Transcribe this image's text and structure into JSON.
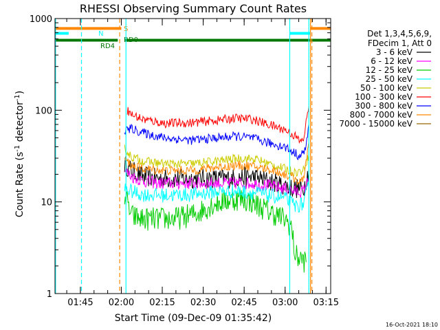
{
  "chart_data": {
    "type": "line",
    "title": "RHESSI Observing Summary Count Rates",
    "xlabel": "Start Time (09-Dec-09 01:35:42)",
    "ylabel_main": "Count Rate (s",
    "ylabel_sup1": "-1",
    "ylabel_mid": " detector",
    "ylabel_sup2": "-1",
    "ylabel_end": ")",
    "x_unit": "minutes after 01:35:42",
    "xlim": [
      0,
      101
    ],
    "yscale": "log",
    "ylim": [
      1,
      1000
    ],
    "x_ticks": [
      {
        "label": "01:45",
        "x": 9.3
      },
      {
        "label": "02:00",
        "x": 24.3
      },
      {
        "label": "02:15",
        "x": 39.3
      },
      {
        "label": "02:30",
        "x": 54.3
      },
      {
        "label": "02:45",
        "x": 69.3
      },
      {
        "label": "03:00",
        "x": 84.3
      },
      {
        "label": "03:15",
        "x": 99.3
      }
    ],
    "y_ticks": [
      {
        "label": "1",
        "y": 1
      },
      {
        "label": "10",
        "y": 10
      },
      {
        "label": "100",
        "y": 100
      },
      {
        "label": "1000",
        "y": 1000
      }
    ],
    "legend_header": [
      "Det 1,3,4,5,6,9,",
      "FDecim 1, Att 0"
    ],
    "series": [
      {
        "name": "3 - 6 keV",
        "color": "#000000",
        "noise": 0.11,
        "points": [
          [
            25.5,
            26
          ],
          [
            28,
            22
          ],
          [
            32,
            19
          ],
          [
            38,
            18
          ],
          [
            45,
            18
          ],
          [
            55,
            18
          ],
          [
            65,
            18
          ],
          [
            72,
            19
          ],
          [
            78,
            17
          ],
          [
            84,
            15
          ],
          [
            88,
            14
          ],
          [
            91,
            14
          ],
          [
            93,
            22
          ]
        ]
      },
      {
        "name": "6 - 12 keV",
        "color": "#ff00ff",
        "noise": 0.07,
        "points": [
          [
            25.5,
            22
          ],
          [
            28,
            19
          ],
          [
            32,
            17
          ],
          [
            38,
            16
          ],
          [
            45,
            16
          ],
          [
            55,
            16
          ],
          [
            65,
            16
          ],
          [
            72,
            16
          ],
          [
            78,
            15
          ],
          [
            84,
            14
          ],
          [
            88,
            13
          ],
          [
            91,
            13
          ],
          [
            93,
            18
          ]
        ]
      },
      {
        "name": "12 - 25 keV",
        "color": "#00cc00",
        "noise": 0.13,
        "points": [
          [
            25.5,
            12
          ],
          [
            28,
            7
          ],
          [
            32,
            6.5
          ],
          [
            38,
            6.5
          ],
          [
            45,
            6.6
          ],
          [
            52,
            7.5
          ],
          [
            58,
            9.5
          ],
          [
            64,
            10.5
          ],
          [
            68,
            10.8
          ],
          [
            72,
            10
          ],
          [
            78,
            8
          ],
          [
            84,
            6.5
          ],
          [
            86.5,
            5.5
          ],
          [
            88,
            2.6
          ],
          [
            92,
            2.2
          ]
        ]
      },
      {
        "name": "25 - 50 keV",
        "color": "#00ffff",
        "noise": 0.08,
        "points": [
          [
            25.5,
            14
          ],
          [
            28,
            13
          ],
          [
            32,
            12
          ],
          [
            40,
            11.8
          ],
          [
            50,
            12
          ],
          [
            60,
            13
          ],
          [
            68,
            13
          ],
          [
            74,
            12.5
          ],
          [
            80,
            11.5
          ],
          [
            84,
            11
          ],
          [
            88,
            9
          ],
          [
            91,
            9.5
          ],
          [
            93,
            15
          ]
        ]
      },
      {
        "name": "50 - 100 keV",
        "color": "#cccc00",
        "noise": 0.05,
        "points": [
          [
            25.5,
            38
          ],
          [
            28,
            31
          ],
          [
            32,
            28
          ],
          [
            40,
            26
          ],
          [
            50,
            26
          ],
          [
            60,
            28
          ],
          [
            68,
            30
          ],
          [
            74,
            29
          ],
          [
            80,
            25
          ],
          [
            84,
            23
          ],
          [
            88,
            21
          ],
          [
            91,
            22
          ],
          [
            93,
            33
          ]
        ]
      },
      {
        "name": "100 - 300 keV",
        "color": "#ff0000",
        "noise": 0.05,
        "points": [
          [
            26.5,
            100
          ],
          [
            28,
            90
          ],
          [
            32,
            80
          ],
          [
            40,
            72
          ],
          [
            50,
            73
          ],
          [
            60,
            78
          ],
          [
            66,
            82
          ],
          [
            72,
            80
          ],
          [
            78,
            70
          ],
          [
            84,
            62
          ],
          [
            88,
            52
          ],
          [
            90,
            45
          ],
          [
            91,
            48
          ],
          [
            93,
            110
          ]
        ]
      },
      {
        "name": "300 - 800 keV",
        "color": "#0000ff",
        "noise": 0.05,
        "points": [
          [
            25.5,
            60
          ],
          [
            28,
            63
          ],
          [
            32,
            57
          ],
          [
            40,
            50
          ],
          [
            50,
            47
          ],
          [
            60,
            50
          ],
          [
            66,
            52
          ],
          [
            72,
            50
          ],
          [
            78,
            44
          ],
          [
            84,
            40
          ],
          [
            88,
            34
          ],
          [
            90,
            31
          ],
          [
            92,
            40
          ],
          [
            93,
            70
          ]
        ]
      },
      {
        "name": "800 - 7000 keV",
        "color": "#ff8800",
        "noise": 0.05,
        "points": [
          [
            25.5,
            30
          ],
          [
            28,
            25
          ],
          [
            32,
            23
          ],
          [
            40,
            22
          ],
          [
            50,
            22
          ],
          [
            60,
            24
          ],
          [
            68,
            25
          ],
          [
            74,
            24
          ],
          [
            80,
            22
          ],
          [
            84,
            20
          ],
          [
            88,
            18
          ],
          [
            90,
            16
          ],
          [
            91,
            18
          ],
          [
            93,
            45
          ]
        ]
      },
      {
        "name": "7000 - 15000 keV",
        "color": "#996600",
        "noise": 0,
        "points": []
      }
    ],
    "flag_bars": [
      {
        "label": "S",
        "color": "#ff8800",
        "y": 780,
        "segments": [
          [
            0,
            24.3
          ],
          [
            93.5,
            101
          ]
        ]
      },
      {
        "label": "N",
        "color": "#00ffff",
        "y": 690,
        "segments": [
          [
            0,
            5
          ],
          [
            86,
            93.5
          ]
        ]
      },
      {
        "label": "RD0",
        "color": "#007700",
        "y": 580,
        "segments": [
          [
            25.6,
            101
          ]
        ]
      },
      {
        "label": "RD4",
        "color": "#007700",
        "y": 580,
        "segments": [
          [
            0,
            23
          ]
        ]
      }
    ],
    "vlines": [
      {
        "x": 0.2,
        "color": "#00ffff",
        "dashed": false
      },
      {
        "x": 9.7,
        "color": "#00ffff",
        "dashed": true
      },
      {
        "x": 23.7,
        "color": "#ff8800",
        "dashed": true
      },
      {
        "x": 26.0,
        "color": "#00ffff",
        "dashed": false
      },
      {
        "x": 86.0,
        "color": "#00ffff",
        "dashed": false
      },
      {
        "x": 93.0,
        "color": "#00ffff",
        "dashed": false
      },
      {
        "x": 93.6,
        "color": "#ff8800",
        "dashed": false
      },
      {
        "x": 94.1,
        "color": "#ff8800",
        "dashed": true
      }
    ],
    "date_stamp": "16-Oct-2021 18:10"
  }
}
